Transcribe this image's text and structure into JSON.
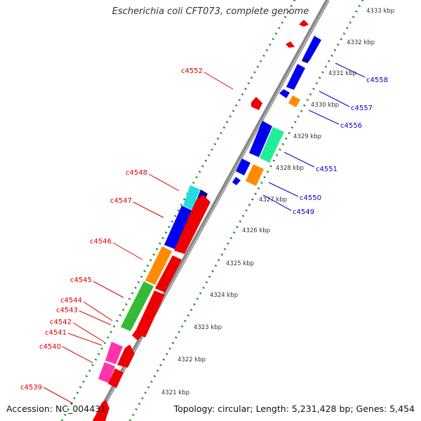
{
  "header": {
    "title": "Escherichia coli CFT073, complete genome"
  },
  "footer": {
    "accession": "Accession: NC_004431",
    "summary": "Topology: circular; Length: 5,231,428 bp; Genes: 5,454"
  },
  "colors": {
    "backbone": "#999999",
    "ticks": "#228b22",
    "label_forward": "#0000cc",
    "label_reverse": "#dd0000",
    "kbp_text": "#333333"
  },
  "kbp_labels": [
    "4321 kbp",
    "4322 kbp",
    "4323 kbp",
    "4324 kbp",
    "4325 kbp",
    "4326 kbp",
    "4327 kbp",
    "4328 kbp",
    "4329 kbp",
    "4330 kbp",
    "4331 kbp",
    "4332 kbp",
    "4333 kbp"
  ],
  "forward_genes": [
    {
      "label": "c4558",
      "color": "#0000ee"
    },
    {
      "label": "c4557",
      "color": "#0000ee"
    },
    {
      "label": "c4556",
      "color": "#ff8c00"
    },
    {
      "label": "c4551",
      "color": "#22ee99"
    },
    {
      "label": "c4550",
      "color": "#0000ee"
    },
    {
      "label": "c4549",
      "color": "#ff8c00"
    }
  ],
  "reverse_genes": [
    {
      "label": "c4552",
      "color": "#ee0000"
    },
    {
      "label": "c4548",
      "color": "#22dddd"
    },
    {
      "label": "c4547",
      "color": "#0000ee"
    },
    {
      "label": "c4546",
      "color": "#ff8c00"
    },
    {
      "label": "c4545",
      "color": "#33bb33"
    },
    {
      "label": "c4544",
      "color": "#ee0000"
    },
    {
      "label": "c4543",
      "color": "#ee0000"
    },
    {
      "label": "c4542",
      "color": "#ee0000"
    },
    {
      "label": "c4541",
      "color": "#ff33aa"
    },
    {
      "label": "c4540",
      "color": "#ff33aa"
    },
    {
      "label": "c4539",
      "color": "#ee0000"
    }
  ]
}
